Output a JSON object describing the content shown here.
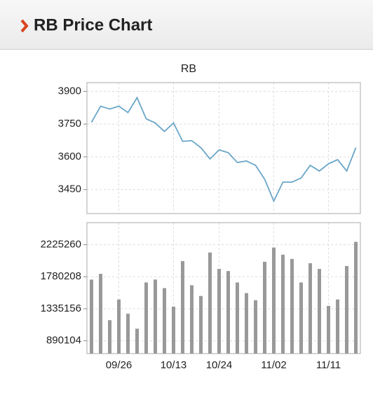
{
  "header": {
    "title": "RB Price Chart"
  },
  "chart_data": [
    {
      "type": "line",
      "title": "RB",
      "color": "#6aa6c8",
      "grid": true,
      "values": [
        3758,
        3832,
        3819,
        3832,
        3803,
        3871,
        3774,
        3755,
        3716,
        3755,
        3671,
        3674,
        3642,
        3590,
        3632,
        3619,
        3574,
        3581,
        3561,
        3497,
        3397,
        3484,
        3484,
        3503,
        3561,
        3535,
        3568,
        3587,
        3535,
        3642
      ],
      "ylim": [
        3340,
        3940
      ],
      "yticks": [
        3900,
        3750,
        3600,
        3450
      ]
    },
    {
      "type": "bar",
      "color": "#999999",
      "grid": true,
      "categories": [
        null,
        null,
        null,
        "09/26",
        null,
        null,
        null,
        null,
        null,
        "10/13",
        null,
        null,
        null,
        null,
        "10/24",
        null,
        null,
        null,
        null,
        null,
        "11/02",
        null,
        null,
        null,
        null,
        null,
        "11/11",
        null,
        null,
        null
      ],
      "values": [
        1740600,
        1820000,
        1177000,
        1464000,
        1266000,
        1058000,
        1701000,
        1741000,
        1622000,
        1365000,
        1998000,
        1662000,
        1513000,
        2117000,
        1889000,
        1859000,
        1701000,
        1553000,
        1454000,
        1988000,
        2186000,
        2087000,
        2028000,
        1701000,
        1968000,
        1889000,
        1375000,
        1464000,
        1929000,
        2265000
      ],
      "ylim": [
        712000,
        2532000
      ],
      "yticks": [
        2225260,
        1780208,
        1335156,
        890104
      ]
    }
  ]
}
